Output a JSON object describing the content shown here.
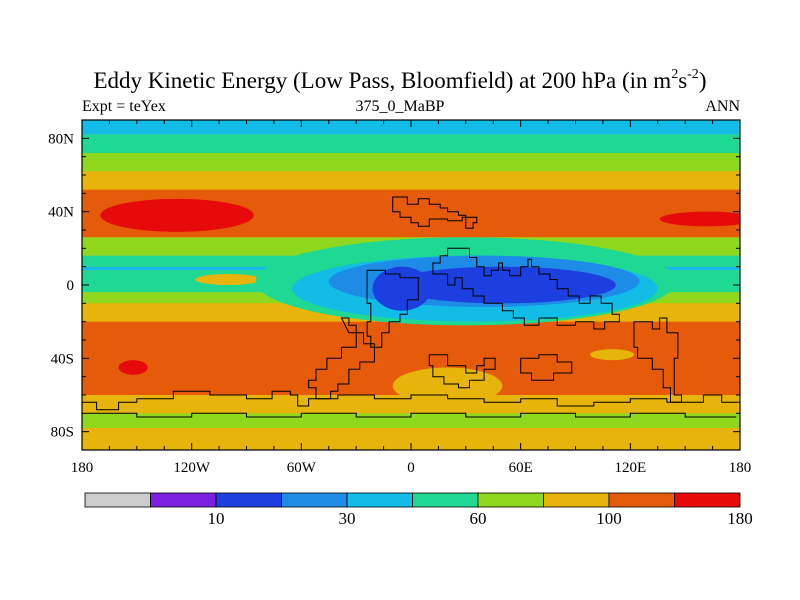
{
  "title": {
    "main": "Eddy Kinetic Energy (Low Pass, Bloomfield) at 200 hPa (in m",
    "sup1": "2",
    "mid": "s",
    "sup2": "-2",
    "close": ")"
  },
  "left_label": "Expt = teYex",
  "center_label": "375_0_MaBP",
  "right_label": "ANN",
  "map": {
    "lon_range": [
      -180,
      180
    ],
    "lat_range": [
      -90,
      90
    ],
    "lon_ticks": [
      {
        "value": -180,
        "label": "180"
      },
      {
        "value": -120,
        "label": "120W"
      },
      {
        "value": -60,
        "label": "60W"
      },
      {
        "value": 0,
        "label": "0"
      },
      {
        "value": 60,
        "label": "60E"
      },
      {
        "value": 120,
        "label": "120E"
      },
      {
        "value": 180,
        "label": "180"
      }
    ],
    "lat_ticks": [
      {
        "value": 80,
        "label": "80N"
      },
      {
        "value": 40,
        "label": "40N"
      },
      {
        "value": 0,
        "label": "0"
      },
      {
        "value": -40,
        "label": "40S"
      },
      {
        "value": -80,
        "label": "80S"
      }
    ],
    "background_color": "#e6b40a",
    "zonal_bands": [
      {
        "lat": [
          82,
          90
        ],
        "level": 4
      },
      {
        "lat": [
          72,
          82
        ],
        "level": 5
      },
      {
        "lat": [
          62,
          72
        ],
        "level": 6
      },
      {
        "lat": [
          52,
          62
        ],
        "level": 7
      },
      {
        "lat": [
          26,
          52
        ],
        "level": 8
      },
      {
        "lat": [
          16,
          26
        ],
        "level": 6
      },
      {
        "lat": [
          10,
          16
        ],
        "level": 5
      },
      {
        "lat": [
          8,
          10
        ],
        "level": 4
      },
      {
        "lat": [
          -4,
          8
        ],
        "level": 5
      },
      {
        "lat": [
          -10,
          -4
        ],
        "level": 6
      },
      {
        "lat": [
          -20,
          -10
        ],
        "level": 7
      },
      {
        "lat": [
          -60,
          -20
        ],
        "level": 8
      },
      {
        "lat": [
          -70,
          -60
        ],
        "level": 7
      },
      {
        "lat": [
          -78,
          -70
        ],
        "level": 6
      },
      {
        "lat": [
          -90,
          -78
        ],
        "level": 7
      }
    ],
    "blobs": [
      {
        "lon": -128,
        "lat": 38,
        "rlon": 42,
        "rlat": 9,
        "level": 9
      },
      {
        "lon": 162,
        "lat": 36,
        "rlon": 26,
        "rlat": 4,
        "level": 9
      },
      {
        "lon": -100,
        "lat": 3,
        "rlon": 18,
        "rlat": 3,
        "level": 7
      },
      {
        "lon": -152,
        "lat": -45,
        "rlon": 8,
        "rlat": 4,
        "level": 9
      },
      {
        "lon": 30,
        "lat": 2,
        "rlon": 115,
        "rlat": 24,
        "level": 5
      },
      {
        "lon": 35,
        "lat": -2,
        "rlon": 100,
        "rlat": 18,
        "level": 4
      },
      {
        "lon": 40,
        "lat": 2,
        "rlon": 85,
        "rlat": 14,
        "level": 3
      },
      {
        "lon": 50,
        "lat": 0,
        "rlon": 62,
        "rlat": 10,
        "level": 2
      },
      {
        "lon": -5,
        "lat": -2,
        "rlon": 16,
        "rlat": 12,
        "level": 2
      },
      {
        "lon": 110,
        "lat": -38,
        "rlon": 12,
        "rlat": 3,
        "level": 7
      },
      {
        "lon": 20,
        "lat": -55,
        "rlon": 30,
        "rlat": 10,
        "level": 7
      }
    ],
    "coastline_paths": [
      "M-10,40 L-6,40 L-6,37 L0,37 L0,34 L4,34 L4,32 L10,32 L10,36 L20,36 L20,35 L28,35 L28,37 L36,37 L36,34 L34,34 L34,31 L30,31 L30,38 L26,38 L26,40 L20,40 L20,42 L16,42 L16,44 L10,44 L10,47 L4,47 L4,44 L-2,44 L-2,48 L-10,48 Z",
      "M30,20 L32,20 L32,15 L36,15 L36,10 L40,10 L40,5 L44,5 L44,8 L48,8 L48,12 L50,12 L50,8 L54,8 L54,5 L60,5 L60,10 L64,10 L64,14 L66,14 L66,10 L70,10 L70,6 L76,6 L76,3 L80,3 L80,-2 L86,-2 L86,-6 L92,-6 L92,-10 L98,-10 L98,-6 L104,-6 L104,-10 L110,-10 L110,-16 L114,-16 L114,-20 L106,-20 L106,-24 L100,-24 L100,-20 L90,-20 L90,-22 L80,-22 L80,-18 L70,-18 L70,-22 L62,-22 L62,-18 L56,-18 L56,-14 L50,-14 L50,-10 L40,-10 L40,-6 L34,-6 L34,-2 L28,-2 L28,4 L24,4 L24,0 L20,0 L20,6 L12,6 L12,12 L16,12 L16,16 L20,16 L20,20 Z",
      "M-24,8 L-14,8 L-14,6 L-6,6 L-6,4 L4,4 L4,-8 L-2,-8 L-2,-16 L-6,-16 L-6,-20 L-12,-20 L-12,-26 L-16,-26 L-16,-34 L-22,-34 L-22,-28 L-24,-28 L-24,-20 L-22,-20 L-22,-10 L-24,-10 Z",
      "M-38,-18 L-34,-18 L-34,-22 L-30,-22 L-30,-34 L-38,-34 L-38,-40 L-46,-40 L-46,-46 L-52,-46 L-52,-52 L-56,-52 L-56,-56 L-52,-56 L-52,-62 L-44,-62 L-44,-58 L-40,-58 L-40,-54 L-34,-54 L-34,-46 L-28,-46 L-28,-42 L-20,-42 L-20,-32 L-26,-32 L-26,-26 L-34,-26 Z",
      "M10,-38 L20,-38 L20,-44 L30,-44 L30,-48 L36,-48 L36,-44 L40,-44 L40,-40 L46,-40 L46,-46 L40,-46 L40,-52 L32,-52 L32,-56 L26,-56 L26,-54 L18,-54 L18,-50 L12,-50 L12,-44 L10,-44 Z",
      "M60,-40 L70,-40 L70,-38 L80,-38 L80,-42 L88,-42 L88,-48 L78,-48 L78,-52 L66,-52 L66,-48 L60,-48 Z",
      "M122,-20 L132,-20 L132,-24 L136,-24 L136,-18 L140,-18 L140,-26 L146,-26 L146,-40 L144,-40 L144,-60 L148,-60 L148,-64 L142,-64 L142,-56 L138,-56 L138,-46 L132,-46 L132,-40 L124,-40 L124,-34 L122,-34 Z",
      "M-180,-64 L-172,-64 L-172,-68 L-160,-68 L-160,-64 L-150,-64 L-150,-62 L-130,-62 L-130,-58 L-110,-58 L-110,-60 L-90,-60 L-90,-62 L-76,-62 L-76,-58 L-66,-58 L-66,-60 L-62,-60 L-62,-66 L-56,-66 L-56,-62 L-40,-62 L-40,-60 L-20,-60 L-20,-62 L0,-62 L0,-60 L20,-60 L20,-62 L40,-62 L40,-64 L60,-64 L60,-62 L80,-62 L80,-66 L100,-66 L100,-64 L120,-64 L120,-62 L140,-62 L140,-64 L160,-64 L160,-60 L170,-60 L170,-64 L180,-64 L180,-90 L-180,-90 Z",
      "M-178,-70 L-150,-70 L-150,-72 L-120,-72 L-120,-70 L-90,-70 L-90,-72 L-60,-72 L-60,-70 L-30,-70 L-30,-72 L0,-72 L0,-70 L30,-70 L30,-72 L60,-72 L60,-70 L90,-70 L90,-72 L120,-72 L120,-70 L150,-70 L150,-72 L178,-72"
    ]
  },
  "colorbar": {
    "colors": [
      "#cccccc",
      "#7d1fe0",
      "#1e3fe0",
      "#1e8ce6",
      "#12bce6",
      "#1ed893",
      "#8fd81e",
      "#e6b40a",
      "#e65b0a",
      "#e60a0a"
    ],
    "labels": [
      {
        "boundary": 2,
        "label": "10"
      },
      {
        "boundary": 4,
        "label": "30"
      },
      {
        "boundary": 6,
        "label": "60"
      },
      {
        "boundary": 8,
        "label": "100"
      },
      {
        "boundary": 10,
        "label": "180"
      }
    ]
  }
}
